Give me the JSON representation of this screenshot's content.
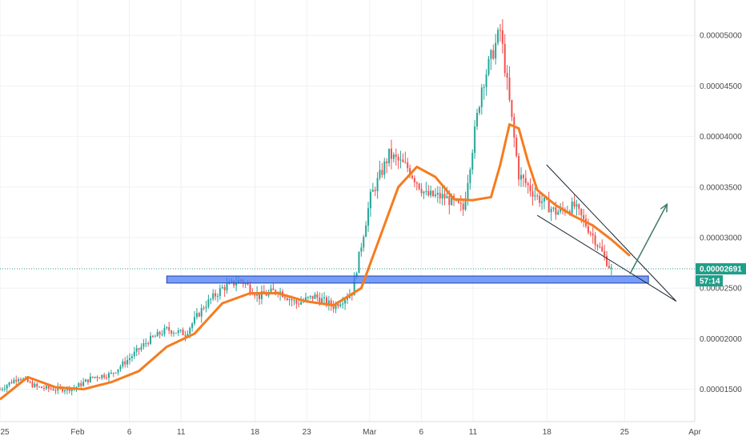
{
  "chart_data": {
    "type": "candlestick",
    "x_ticks": [
      "25",
      "Feb",
      "6",
      "11",
      "18",
      "23",
      "Mar",
      "6",
      "11",
      "18",
      "25",
      "Apr"
    ],
    "y_ticks": [
      "0.00001500",
      "0.00002000",
      "0.00002500",
      "0.00003000",
      "0.00003500",
      "0.00004000",
      "0.00004500",
      "0.00005000"
    ],
    "ylim": [
      1.18e-05,
      5.35e-05
    ],
    "grid": true,
    "last_price": "0.00002691",
    "countdown": "57:14",
    "price_series": {
      "x": [
        0,
        2,
        4,
        6,
        8,
        10,
        12,
        14,
        16,
        18,
        20,
        22,
        24,
        26,
        28,
        30,
        32,
        34,
        36,
        38,
        40,
        42,
        44,
        46,
        48,
        50,
        52,
        54,
        56,
        58,
        60,
        62,
        64,
        66
      ],
      "y": [
        1.5e-05,
        1.62e-05,
        1.52e-05,
        1.5e-05,
        1.51e-05,
        1.62e-05,
        1.65e-05,
        1.81e-05,
        1.98e-05,
        2.09e-05,
        2.05e-05,
        2.32e-05,
        2.5e-05,
        2.58e-05,
        2.42e-05,
        2.48e-05,
        2.35e-05,
        2.42e-05,
        2.32e-05,
        2.46e-05,
        3.4e-05,
        3.82e-05,
        3.69e-05,
        3.42e-05,
        3.4e-05,
        3.28e-05,
        4.5e-05,
        5.05e-05,
        3.62e-05,
        3.4e-05,
        3.25e-05,
        3.31e-05,
        3.02e-05,
        2.68e-05
      ]
    },
    "moving_average": {
      "color": "#f57c1f",
      "x": [
        0,
        3,
        6,
        9,
        12,
        15,
        18,
        21,
        24,
        27,
        30,
        33,
        36,
        39,
        41,
        43,
        45,
        47,
        49,
        51,
        53,
        54,
        55,
        56,
        57,
        58,
        60,
        62,
        64,
        66,
        68
      ],
      "y": [
        1.4e-05,
        1.62e-05,
        1.52e-05,
        1.5e-05,
        1.57e-05,
        1.68e-05,
        1.92e-05,
        2.05e-05,
        2.35e-05,
        2.45e-05,
        2.45e-05,
        2.37e-05,
        2.33e-05,
        2.5e-05,
        3e-05,
        3.5e-05,
        3.7e-05,
        3.6e-05,
        3.38e-05,
        3.37e-05,
        3.4e-05,
        3.72e-05,
        4.12e-05,
        4.08e-05,
        3.75e-05,
        3.47e-05,
        3.32e-05,
        3.21e-05,
        3.12e-05,
        2.98e-05,
        2.82e-05
      ]
    },
    "support_zone": {
      "x_range": [
        18,
        70
      ],
      "y_range": [
        2.55e-05,
        2.62e-05
      ],
      "color": "#4a7df0"
    },
    "falling_wedge": [
      {
        "x1": 59,
        "y1": 3.72e-05,
        "x2": 73,
        "y2": 2.37e-05
      },
      {
        "x1": 58,
        "y1": 3.22e-05,
        "x2": 73,
        "y2": 2.37e-05
      }
    ],
    "projection_arrow": {
      "x1": 68,
      "y1": 2.64e-05,
      "x2": 72,
      "y2": 3.33e-05,
      "color": "#3f7a6b"
    }
  },
  "colors": {
    "up": "#26a69a",
    "down": "#ef5350",
    "price_line": "#2a9d8f",
    "badge_green": "#1f9e89"
  }
}
